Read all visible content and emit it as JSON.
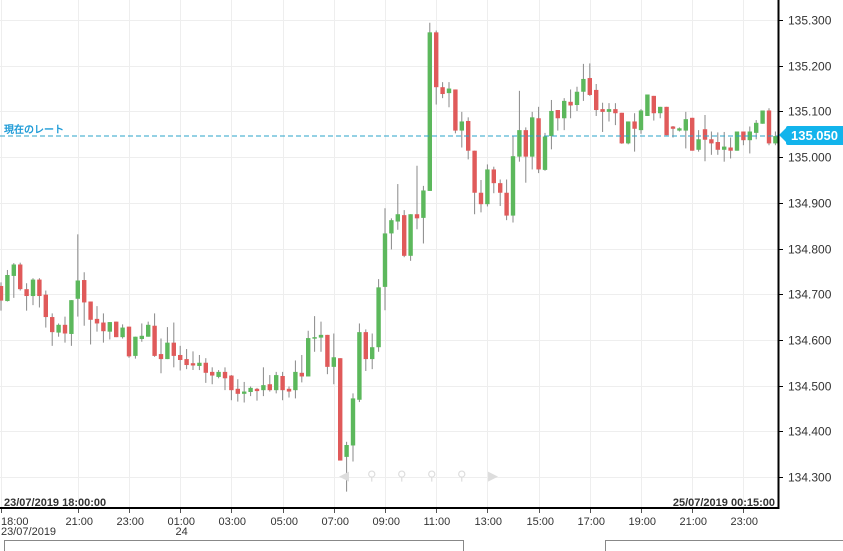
{
  "current_rate": {
    "label": "現在のレート",
    "value": "135.050",
    "color": "#12b4ec"
  },
  "range": {
    "start": "23/07/2019 18:00:00",
    "end": "25/07/2019 00:15:00"
  },
  "toolbar": {
    "icons": [
      "scroll-left-icon",
      "zoom-in-icon",
      "zoom-out-icon",
      "zoom-expand-icon",
      "zoom-shrink-icon",
      "scroll-right-icon"
    ]
  },
  "colors": {
    "up": "#5cb85c",
    "down": "#e05a5a",
    "wick": "#888888",
    "grid": "#eeeeee"
  },
  "chart_data": {
    "type": "candlestick",
    "interval": "15min",
    "ylim": [
      134.25,
      135.33
    ],
    "yticks": [
      "134.300",
      "134.400",
      "134.500",
      "134.600",
      "134.700",
      "134.800",
      "134.900",
      "135.000",
      "135.100",
      "135.200",
      "135.300"
    ],
    "xticks": [
      {
        "label": "18:00",
        "sub": "23/07/2019"
      },
      {
        "label": "21:00",
        "sub": ""
      },
      {
        "label": "23:00",
        "sub": ""
      },
      {
        "label": "01:00",
        "sub": "24"
      },
      {
        "label": "03:00",
        "sub": ""
      },
      {
        "label": "05:00",
        "sub": ""
      },
      {
        "label": "07:00",
        "sub": ""
      },
      {
        "label": "09:00",
        "sub": ""
      },
      {
        "label": "11:00",
        "sub": ""
      },
      {
        "label": "13:00",
        "sub": ""
      },
      {
        "label": "15:00",
        "sub": ""
      },
      {
        "label": "17:00",
        "sub": ""
      },
      {
        "label": "19:00",
        "sub": ""
      },
      {
        "label": "21:00",
        "sub": ""
      },
      {
        "label": "23:00",
        "sub": ""
      }
    ],
    "grid": true,
    "ohlc_fields": [
      "open",
      "high",
      "low",
      "close"
    ],
    "ohlc": [
      [
        134.718,
        134.726,
        134.664,
        134.686
      ],
      [
        134.685,
        134.753,
        134.684,
        134.742
      ],
      [
        134.74,
        134.768,
        134.692,
        134.765
      ],
      [
        134.765,
        134.769,
        134.708,
        134.711
      ],
      [
        134.711,
        134.724,
        134.664,
        134.696
      ],
      [
        134.696,
        134.735,
        134.676,
        134.732
      ],
      [
        134.732,
        134.735,
        134.671,
        134.696
      ],
      [
        134.699,
        134.708,
        134.627,
        134.65
      ],
      [
        134.65,
        134.658,
        134.587,
        134.617
      ],
      [
        134.616,
        134.636,
        134.607,
        134.633
      ],
      [
        134.633,
        134.651,
        134.594,
        134.614
      ],
      [
        134.613,
        134.687,
        134.587,
        134.687
      ],
      [
        134.69,
        134.831,
        134.651,
        134.73
      ],
      [
        134.731,
        134.748,
        134.631,
        134.682
      ],
      [
        134.684,
        134.684,
        134.59,
        134.644
      ],
      [
        134.646,
        134.674,
        134.618,
        134.636
      ],
      [
        134.638,
        134.658,
        134.594,
        134.619
      ],
      [
        134.618,
        134.639,
        134.601,
        134.639
      ],
      [
        134.64,
        134.64,
        134.606,
        134.606
      ],
      [
        134.606,
        134.634,
        134.603,
        134.627
      ],
      [
        134.629,
        134.629,
        134.561,
        134.564
      ],
      [
        134.565,
        134.607,
        134.559,
        134.607
      ],
      [
        134.602,
        134.636,
        134.596,
        134.609
      ],
      [
        134.607,
        134.64,
        134.607,
        134.633
      ],
      [
        134.631,
        134.658,
        134.563,
        134.565
      ],
      [
        134.569,
        134.603,
        134.527,
        134.558
      ],
      [
        134.558,
        134.628,
        134.558,
        134.594
      ],
      [
        134.594,
        134.638,
        134.54,
        134.565
      ],
      [
        134.567,
        134.587,
        134.533,
        134.556
      ],
      [
        134.558,
        134.58,
        134.536,
        134.545
      ],
      [
        134.549,
        134.575,
        134.534,
        134.544
      ],
      [
        134.543,
        134.567,
        134.534,
        134.55
      ],
      [
        134.55,
        134.56,
        134.506,
        134.528
      ],
      [
        134.53,
        134.54,
        134.503,
        134.522
      ],
      [
        134.519,
        134.534,
        134.516,
        134.53
      ],
      [
        134.53,
        134.54,
        134.49,
        134.516
      ],
      [
        134.522,
        134.523,
        134.468,
        134.49
      ],
      [
        134.493,
        134.514,
        134.465,
        134.482
      ],
      [
        134.482,
        134.508,
        134.463,
        134.487
      ],
      [
        134.486,
        134.498,
        134.477,
        134.495
      ],
      [
        134.493,
        134.495,
        134.467,
        134.488
      ],
      [
        134.49,
        134.54,
        134.477,
        134.501
      ],
      [
        134.503,
        134.523,
        134.487,
        134.49
      ],
      [
        134.49,
        134.53,
        134.483,
        134.523
      ],
      [
        134.521,
        134.53,
        134.468,
        134.49
      ],
      [
        134.493,
        134.498,
        134.474,
        134.487
      ],
      [
        134.49,
        134.555,
        134.472,
        134.53
      ],
      [
        134.528,
        134.567,
        134.507,
        134.52
      ],
      [
        134.52,
        134.62,
        134.52,
        134.604
      ],
      [
        134.603,
        134.652,
        134.574,
        134.606
      ],
      [
        134.605,
        134.64,
        134.574,
        134.611
      ],
      [
        134.611,
        134.611,
        134.525,
        134.541
      ],
      [
        134.541,
        134.614,
        134.503,
        134.562
      ],
      [
        134.56,
        134.56,
        134.336,
        134.336
      ],
      [
        134.344,
        134.377,
        134.268,
        134.37
      ],
      [
        134.369,
        134.483,
        134.334,
        134.472
      ],
      [
        134.469,
        134.636,
        134.464,
        134.617
      ],
      [
        134.617,
        134.623,
        134.532,
        134.558
      ],
      [
        134.558,
        134.614,
        134.536,
        134.584
      ],
      [
        134.584,
        134.733,
        134.574,
        134.715
      ],
      [
        134.716,
        134.888,
        134.665,
        134.833
      ],
      [
        134.833,
        134.866,
        134.798,
        134.862
      ],
      [
        134.859,
        134.941,
        134.841,
        134.875
      ],
      [
        134.873,
        134.884,
        134.781,
        134.784
      ],
      [
        134.784,
        134.875,
        134.773,
        134.875
      ],
      [
        134.875,
        134.981,
        134.842,
        134.866
      ],
      [
        134.867,
        134.937,
        134.811,
        134.927
      ],
      [
        134.926,
        135.294,
        134.926,
        135.273
      ],
      [
        135.273,
        135.277,
        135.115,
        135.153
      ],
      [
        135.153,
        135.164,
        135.129,
        135.138
      ],
      [
        135.14,
        135.164,
        135.109,
        135.15
      ],
      [
        135.148,
        135.148,
        135.052,
        135.058
      ],
      [
        135.058,
        135.099,
        135.021,
        135.078
      ],
      [
        135.079,
        135.087,
        134.995,
        135.014
      ],
      [
        135.014,
        135.014,
        134.875,
        134.922
      ],
      [
        134.922,
        134.95,
        134.879,
        134.897
      ],
      [
        134.897,
        134.984,
        134.892,
        134.973
      ],
      [
        134.973,
        134.979,
        134.921,
        134.943
      ],
      [
        134.943,
        134.951,
        134.893,
        134.922
      ],
      [
        134.922,
        134.951,
        134.862,
        134.872
      ],
      [
        134.872,
        135.045,
        134.857,
        135.002
      ],
      [
        135.001,
        135.145,
        134.99,
        135.059
      ],
      [
        135.059,
        135.065,
        134.944,
        135.001
      ],
      [
        135.001,
        135.099,
        134.973,
        135.087
      ],
      [
        135.085,
        135.11,
        134.965,
        134.973
      ],
      [
        134.972,
        135.053,
        134.97,
        135.045
      ],
      [
        135.046,
        135.125,
        135.017,
        135.101
      ],
      [
        135.103,
        135.103,
        135.058,
        135.085
      ],
      [
        135.085,
        135.129,
        135.059,
        135.123
      ],
      [
        135.121,
        135.148,
        135.085,
        135.113
      ],
      [
        135.114,
        135.154,
        135.101,
        135.143
      ],
      [
        135.143,
        135.204,
        135.123,
        135.171
      ],
      [
        135.173,
        135.205,
        135.134,
        135.136
      ],
      [
        135.147,
        135.16,
        135.09,
        135.103
      ],
      [
        135.105,
        135.119,
        135.055,
        135.099
      ],
      [
        135.099,
        135.118,
        135.078,
        135.105
      ],
      [
        135.105,
        135.118,
        135.07,
        135.096
      ],
      [
        135.097,
        135.097,
        135.029,
        135.03
      ],
      [
        135.03,
        135.078,
        135.028,
        135.078
      ],
      [
        135.078,
        135.096,
        135.012,
        135.062
      ],
      [
        135.059,
        135.105,
        135.051,
        135.102
      ],
      [
        135.09,
        135.137,
        135.09,
        135.137
      ],
      [
        135.134,
        135.134,
        135.08,
        135.096
      ],
      [
        135.096,
        135.11,
        135.085,
        135.11
      ],
      [
        135.11,
        135.11,
        135.048,
        135.048
      ],
      [
        135.067,
        135.068,
        135.043,
        135.062
      ],
      [
        135.058,
        135.065,
        135.056,
        135.063
      ],
      [
        135.058,
        135.099,
        135.019,
        135.083
      ],
      [
        135.086,
        135.086,
        135.014,
        135.014
      ],
      [
        135.016,
        135.059,
        135.012,
        135.039
      ],
      [
        135.061,
        135.092,
        134.991,
        135.038
      ],
      [
        135.039,
        135.056,
        135.005,
        135.03
      ],
      [
        135.033,
        135.054,
        135.005,
        135.016
      ],
      [
        135.016,
        135.055,
        134.99,
        135.023
      ],
      [
        135.021,
        135.043,
        134.997,
        135.014
      ],
      [
        135.014,
        135.056,
        135.014,
        135.056
      ],
      [
        135.056,
        135.056,
        135.026,
        135.037
      ],
      [
        135.037,
        135.067,
        135.008,
        135.056
      ],
      [
        135.053,
        135.081,
        135.039,
        135.075
      ],
      [
        135.073,
        135.102,
        135.073,
        135.102
      ],
      [
        135.102,
        135.107,
        135.026,
        135.03
      ],
      [
        135.03,
        135.056,
        135.026,
        135.046
      ]
    ]
  }
}
